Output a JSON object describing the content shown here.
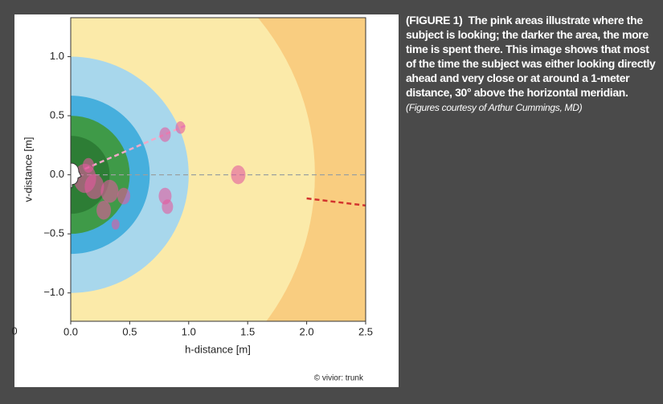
{
  "chart_data": {
    "type": "gaze-map",
    "xlabel": "h-distance [m]",
    "ylabel": "v-distance [m]",
    "xlim": [
      0,
      2.5
    ],
    "ylim": [
      -1.24,
      1.33
    ],
    "xticks": [
      {
        "value": 0,
        "label": "0.0"
      },
      {
        "value": 0.5,
        "label": "0.5"
      },
      {
        "value": 1,
        "label": "1.0"
      },
      {
        "value": 1.5,
        "label": "1.5"
      },
      {
        "value": 2,
        "label": "2.0"
      },
      {
        "value": 2.5,
        "label": "2.5"
      }
    ],
    "yticks": [
      {
        "value": -1,
        "label": "−1.0"
      },
      {
        "value": -0.5,
        "label": "−0.5"
      },
      {
        "value": 0,
        "label": "0.0"
      },
      {
        "value": 0.5,
        "label": "0.5"
      },
      {
        "value": 1,
        "label": "1.0"
      }
    ],
    "edge_label": "0",
    "background_color": "#f9cd80",
    "rings": [
      {
        "radius": 2.07,
        "color": "#fbeaa9"
      },
      {
        "radius": 1.0,
        "color": "#a8d7ec"
      },
      {
        "radius": 0.67,
        "color": "#46afdd"
      },
      {
        "radius": 0.5,
        "color": "#3f9a48"
      },
      {
        "radius": 0.33,
        "color": "#2d7d35"
      }
    ],
    "lines": [
      {
        "x": [
          0,
          2.5
        ],
        "y": [
          0,
          0
        ],
        "color": "#9aa0a0"
      },
      {
        "x": [
          0.12,
          0.98
        ],
        "y": [
          0.05,
          0.42
        ],
        "color": "#f2a9c8"
      },
      {
        "x": [
          2.0,
          2.5
        ],
        "y": [
          -0.2,
          -0.26
        ],
        "color": "#d2342e"
      }
    ],
    "points": {
      "color": "#e25a9e",
      "x": [
        0.12,
        0.2,
        0.33,
        0.45,
        0.28,
        0.8,
        0.82,
        0.8,
        0.93,
        1.42,
        0.38,
        0.15
      ],
      "y": [
        -0.03,
        -0.1,
        -0.14,
        -0.18,
        -0.3,
        -0.18,
        -0.27,
        0.34,
        0.4,
        0.0,
        -0.42,
        0.08
      ],
      "size": [
        14,
        12,
        11,
        8,
        9,
        8,
        7,
        7,
        6,
        9,
        5,
        7
      ]
    },
    "credit": "© vivior: trunk"
  },
  "caption": {
    "label": "(FIGURE 1)",
    "text": "The pink areas illustrate where the subject is looking; the darker the area, the more time is spent there. This image shows that most of the time the subject was either looking directly ahead and very close or at around a 1-meter distance, 30° above the horizontal meridian.",
    "note": "(Figures courtesy of Arthur Cummings, MD)"
  }
}
